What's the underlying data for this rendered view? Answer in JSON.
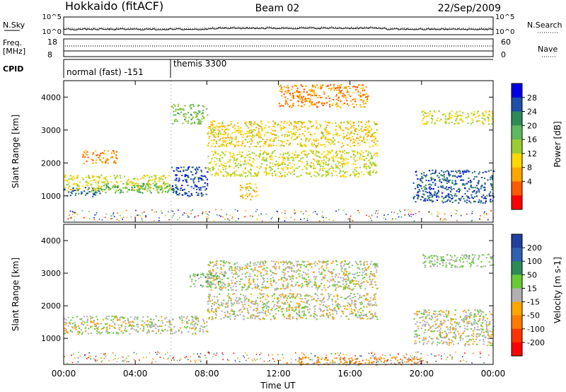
{
  "header": {
    "station": "Hokkaido (fitACF)",
    "beam": "Beam 02",
    "date": "22/Sep/2009"
  },
  "strips": {
    "nsky": {
      "label": "N.Sky",
      "ticks": [
        "10^5",
        "10^0"
      ]
    },
    "nsearch": {
      "label": "N.Search",
      "ticks": [
        "10^5",
        "10^0"
      ]
    },
    "freq": {
      "label_line1": "Freq.",
      "label_line2": "[MHz]",
      "ticks": [
        "18",
        "8"
      ]
    },
    "nave": {
      "label": "Nave",
      "ticks": [
        "60",
        "0"
      ]
    },
    "cpid": {
      "label": "CPID",
      "segments": [
        {
          "name": "normal (fast) -151",
          "start_hour": 0,
          "end_hour": 6.0
        },
        {
          "name": "themis 3300",
          "start_hour": 6.0,
          "end_hour": 24
        }
      ]
    }
  },
  "time_axis": {
    "label": "Time UT",
    "ticks": [
      "00:00",
      "04:00",
      "08:00",
      "12:00",
      "16:00",
      "20:00",
      "00:00"
    ]
  },
  "range_axis": {
    "label": "Slant Range [km]",
    "ticks": [
      "1000",
      "2000",
      "3000",
      "4000"
    ]
  },
  "power_colorbar": {
    "label": "Power [dB]",
    "ticks": [
      "28",
      "24",
      "20",
      "16",
      "12",
      "8",
      "4"
    ],
    "colors": [
      "#0000e6",
      "#1f4fa8",
      "#2e8b57",
      "#5fb85f",
      "#9acd32",
      "#ffd700",
      "#ffa500",
      "#ff5a00",
      "#ff0000"
    ]
  },
  "velocity_colorbar": {
    "label": "Velocity [m s-1]",
    "ticks": [
      "200",
      "100",
      "50",
      "15",
      "-15",
      "-50",
      "-100",
      "-200"
    ],
    "colors": [
      "#2040a0",
      "#3060b0",
      "#2e8b57",
      "#66cc33",
      "#b0b0b0",
      "#ffa500",
      "#ff7a00",
      "#ff3300",
      "#ff0000"
    ]
  },
  "chart_data": [
    {
      "type": "heatmap",
      "title": "Power",
      "xlabel": "Time UT",
      "ylabel": "Slant Range [km]",
      "xlim": [
        0,
        24
      ],
      "ylim": [
        200,
        4500
      ],
      "colorbar_label": "Power [dB]",
      "colorbar_range": [
        0,
        32
      ],
      "features": [
        {
          "t0": 0.0,
          "t1": 2.0,
          "r0": 1000,
          "r1": 1300,
          "value": 25
        },
        {
          "t0": 0.0,
          "t1": 6.0,
          "r0": 1150,
          "r1": 1650,
          "value": 14
        },
        {
          "t0": 2.0,
          "t1": 6.0,
          "r0": 1100,
          "r1": 1400,
          "value": 20
        },
        {
          "t0": 6.0,
          "t1": 8.0,
          "r0": 1000,
          "r1": 1900,
          "value": 27
        },
        {
          "t0": 1.0,
          "t1": 3.0,
          "r0": 2000,
          "r1": 2400,
          "value": 8
        },
        {
          "t0": 6.0,
          "t1": 8.0,
          "r0": 3200,
          "r1": 3800,
          "value": 18
        },
        {
          "t0": 8.0,
          "t1": 17.5,
          "r0": 1600,
          "r1": 2400,
          "value": 14
        },
        {
          "t0": 8.0,
          "t1": 17.5,
          "r0": 2500,
          "r1": 3300,
          "value": 12
        },
        {
          "t0": 12.0,
          "t1": 17.0,
          "r0": 3700,
          "r1": 4400,
          "value": 8
        },
        {
          "t0": 19.5,
          "t1": 24.0,
          "r0": 800,
          "r1": 1800,
          "value": 26
        },
        {
          "t0": 20.0,
          "t1": 24.0,
          "r0": 3200,
          "r1": 3600,
          "value": 14
        },
        {
          "t0": 9.8,
          "t1": 10.8,
          "r0": 900,
          "r1": 1400,
          "value": 12
        }
      ]
    },
    {
      "type": "heatmap",
      "title": "Velocity",
      "xlabel": "Time UT",
      "ylabel": "Slant Range [km]",
      "xlim": [
        0,
        24
      ],
      "ylim": [
        200,
        4500
      ],
      "colorbar_label": "Velocity [m s-1]",
      "colorbar_range": [
        -250,
        250
      ],
      "features": [
        {
          "t0": 0.0,
          "t1": 8.0,
          "r0": 1150,
          "r1": 1700,
          "value": 0
        },
        {
          "t0": 8.0,
          "t1": 17.5,
          "r0": 1600,
          "r1": 2400,
          "value": 0
        },
        {
          "t0": 8.0,
          "t1": 17.5,
          "r0": 2500,
          "r1": 3400,
          "value": 0
        },
        {
          "t0": 19.5,
          "t1": 24.0,
          "r0": 800,
          "r1": 1900,
          "value": 0
        },
        {
          "t0": 20.0,
          "t1": 24.0,
          "r0": 3200,
          "r1": 3600,
          "value": 30
        },
        {
          "t0": 13.0,
          "t1": 20.0,
          "r0": 200,
          "r1": 450,
          "value": -60
        },
        {
          "t0": 7.0,
          "t1": 9.0,
          "r0": 2600,
          "r1": 3000,
          "value": 40
        }
      ]
    }
  ]
}
